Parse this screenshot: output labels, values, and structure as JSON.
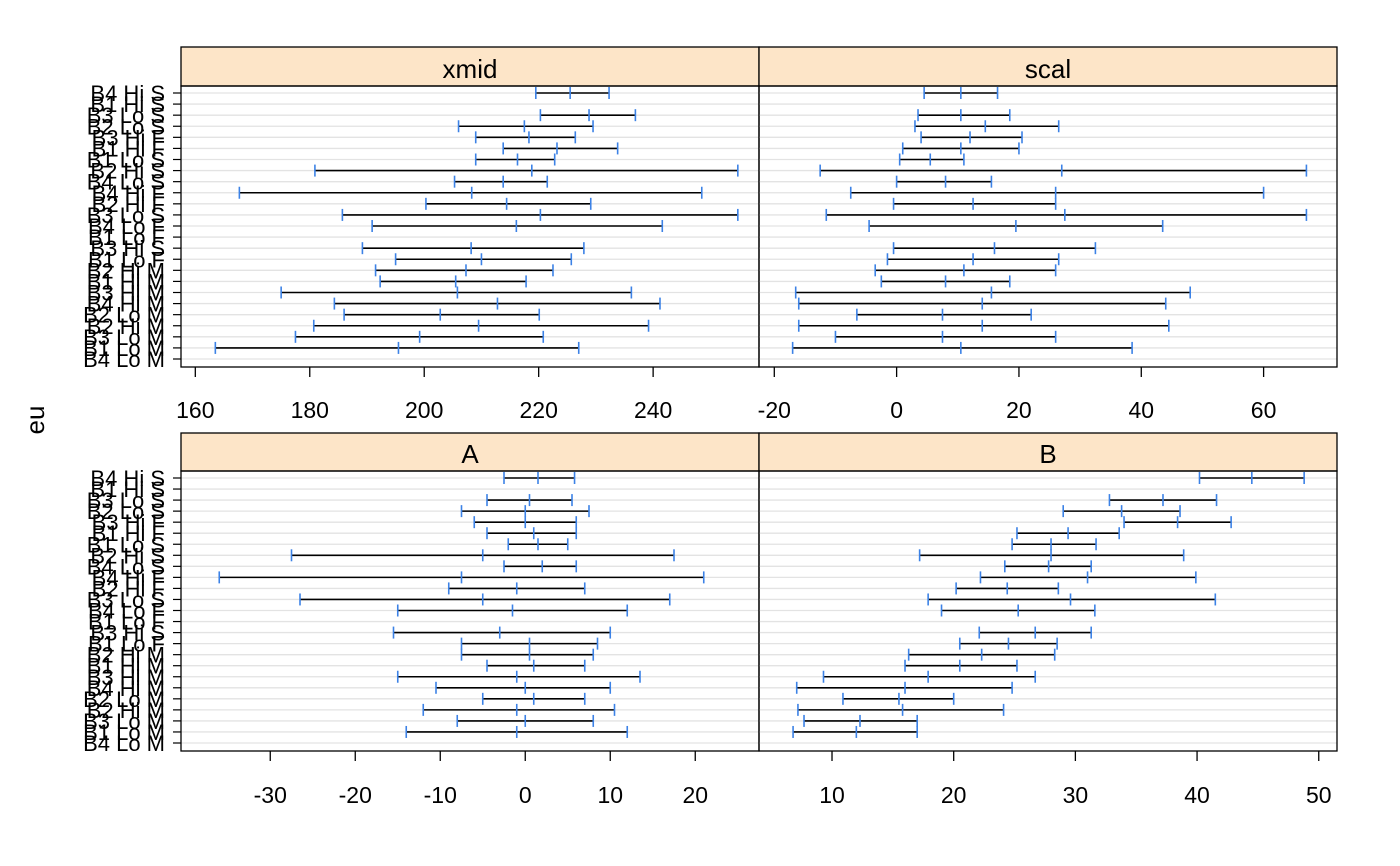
{
  "chart_data": {
    "type": "interval",
    "ylabel": "eu",
    "categories": [
      "B4 Hi S",
      "B1 Hi S",
      "B3 Lo S",
      "B2 Lo S",
      "B3 Hi F",
      "B1 Hi F",
      "B1 Lo S",
      "B2 Hi S",
      "B4 Lo S",
      "B4 Hi F",
      "B2 Hi F",
      "B3 Lo S",
      "B4 Lo F",
      "B1 Lo F",
      "B3 Hi S",
      "B1 Lo F",
      "B2 Hi M",
      "B1 Hi M",
      "B3 Hi M",
      "B4 Hi M",
      "B2 Lo M",
      "B2 Hi M",
      "B3 Lo M",
      "B1 Lo M",
      "B4 Lo M"
    ],
    "panels": [
      {
        "strip": "xmid",
        "xticks": [
          160,
          180,
          200,
          220,
          240
        ],
        "xlim": [
          157.5,
          258.5
        ],
        "intervals": [
          [
            219.5,
            225.5,
            232.3
          ],
          [
            null,
            null,
            null
          ],
          [
            220.3,
            228.8,
            236.9
          ],
          [
            206.0,
            217.5,
            229.5
          ],
          [
            209.0,
            218.3,
            226.4
          ],
          [
            213.8,
            223.2,
            233.8
          ],
          [
            209.0,
            216.3,
            222.8
          ],
          [
            180.9,
            218.8,
            254.8
          ],
          [
            205.3,
            213.8,
            221.5
          ],
          [
            167.7,
            208.3,
            248.5
          ],
          [
            200.3,
            214.4,
            229.1
          ],
          [
            185.7,
            220.3,
            254.8
          ],
          [
            190.9,
            216.1,
            241.6
          ],
          [
            null,
            null,
            null
          ],
          [
            189.2,
            208.2,
            227.9
          ],
          [
            195.0,
            210.0,
            225.7
          ],
          [
            191.5,
            207.3,
            222.5
          ],
          [
            192.3,
            205.5,
            217.8
          ],
          [
            175.0,
            205.8,
            236.2
          ],
          [
            184.3,
            212.8,
            241.2
          ],
          [
            186.0,
            202.8,
            220.1
          ],
          [
            180.7,
            209.5,
            239.2
          ],
          [
            177.5,
            199.2,
            220.8
          ],
          [
            163.5,
            195.5,
            227.0
          ],
          [
            null,
            null,
            null
          ]
        ]
      },
      {
        "strip": "scal",
        "xticks": [
          -20,
          0,
          20,
          40,
          60
        ],
        "xlim": [
          -22.5,
          72.0
        ],
        "intervals": [
          [
            4.5,
            10.5,
            16.5
          ],
          [
            null,
            null,
            null
          ],
          [
            3.5,
            10.5,
            18.5
          ],
          [
            3.0,
            14.5,
            26.5
          ],
          [
            4.0,
            12.0,
            20.5
          ],
          [
            1.0,
            10.5,
            20.0
          ],
          [
            0.5,
            5.5,
            11.0
          ],
          [
            -12.5,
            27.0,
            67.0
          ],
          [
            0.0,
            8.0,
            15.5
          ],
          [
            -7.5,
            26.0,
            60.0
          ],
          [
            -0.5,
            12.5,
            26.0
          ],
          [
            -11.5,
            27.5,
            67.0
          ],
          [
            -4.5,
            19.5,
            43.5
          ],
          [
            null,
            null,
            null
          ],
          [
            -0.5,
            16.0,
            32.5
          ],
          [
            -1.5,
            12.5,
            26.5
          ],
          [
            -3.5,
            11.0,
            26.0
          ],
          [
            -2.5,
            8.0,
            18.5
          ],
          [
            -16.5,
            15.5,
            48.0
          ],
          [
            -16.0,
            14.0,
            44.0
          ],
          [
            -6.5,
            7.5,
            22.0
          ],
          [
            -16.0,
            14.0,
            44.5
          ],
          [
            -10.0,
            7.5,
            26.0
          ],
          [
            -17.0,
            10.5,
            38.5
          ],
          [
            null,
            null,
            null
          ]
        ]
      },
      {
        "strip": "A",
        "xticks": [
          -30,
          -20,
          -10,
          0,
          10,
          20
        ],
        "xlim": [
          -40.5,
          27.5
        ],
        "intervals": [
          [
            -2.5,
            1.5,
            5.8
          ],
          [
            null,
            null,
            null
          ],
          [
            -4.5,
            0.5,
            5.5
          ],
          [
            -7.5,
            0.0,
            7.5
          ],
          [
            -6.0,
            0.0,
            6.0
          ],
          [
            -4.5,
            1.0,
            6.0
          ],
          [
            -2.0,
            1.5,
            5.0
          ],
          [
            -27.5,
            -5.0,
            17.5
          ],
          [
            -2.5,
            2.0,
            6.0
          ],
          [
            -36.0,
            -7.5,
            21.0
          ],
          [
            -9.0,
            -1.0,
            7.0
          ],
          [
            -26.5,
            -5.0,
            17.0
          ],
          [
            -15.0,
            -1.5,
            12.0
          ],
          [
            null,
            null,
            null
          ],
          [
            -15.5,
            -3.0,
            10.0
          ],
          [
            -7.5,
            0.5,
            8.5
          ],
          [
            -7.5,
            0.5,
            8.0
          ],
          [
            -4.5,
            1.0,
            7.0
          ],
          [
            -15.0,
            -1.0,
            13.5
          ],
          [
            -10.5,
            0.0,
            10.0
          ],
          [
            -5.0,
            1.0,
            7.0
          ],
          [
            -12.0,
            -1.0,
            10.5
          ],
          [
            -8.0,
            0.0,
            8.0
          ],
          [
            -14.0,
            -1.0,
            12.0
          ],
          [
            null,
            null,
            null
          ]
        ]
      },
      {
        "strip": "B",
        "xticks": [
          10,
          20,
          30,
          40,
          50
        ],
        "xlim": [
          4.0,
          51.5
        ],
        "intervals": [
          [
            40.2,
            44.5,
            48.8
          ],
          [
            null,
            null,
            null
          ],
          [
            32.8,
            37.2,
            41.6
          ],
          [
            29.0,
            33.8,
            38.6
          ],
          [
            34.0,
            38.4,
            42.8
          ],
          [
            25.2,
            29.4,
            33.6
          ],
          [
            24.8,
            28.0,
            31.7
          ],
          [
            17.2,
            28.0,
            38.9
          ],
          [
            24.2,
            27.8,
            31.3
          ],
          [
            22.2,
            31.0,
            39.9
          ],
          [
            20.2,
            24.4,
            28.6
          ],
          [
            17.9,
            29.6,
            41.5
          ],
          [
            19.0,
            25.3,
            31.6
          ],
          [
            null,
            null,
            null
          ],
          [
            22.1,
            26.7,
            31.3
          ],
          [
            20.5,
            24.5,
            28.5
          ],
          [
            16.3,
            22.3,
            28.3
          ],
          [
            16.0,
            20.5,
            25.2
          ],
          [
            9.3,
            17.9,
            26.7
          ],
          [
            7.1,
            16.0,
            24.8
          ],
          [
            10.9,
            15.5,
            20.0
          ],
          [
            7.2,
            15.8,
            24.1
          ],
          [
            7.7,
            12.3,
            17.0
          ],
          [
            6.8,
            12.0,
            17.0
          ],
          [
            null,
            null,
            null
          ]
        ]
      }
    ]
  }
}
